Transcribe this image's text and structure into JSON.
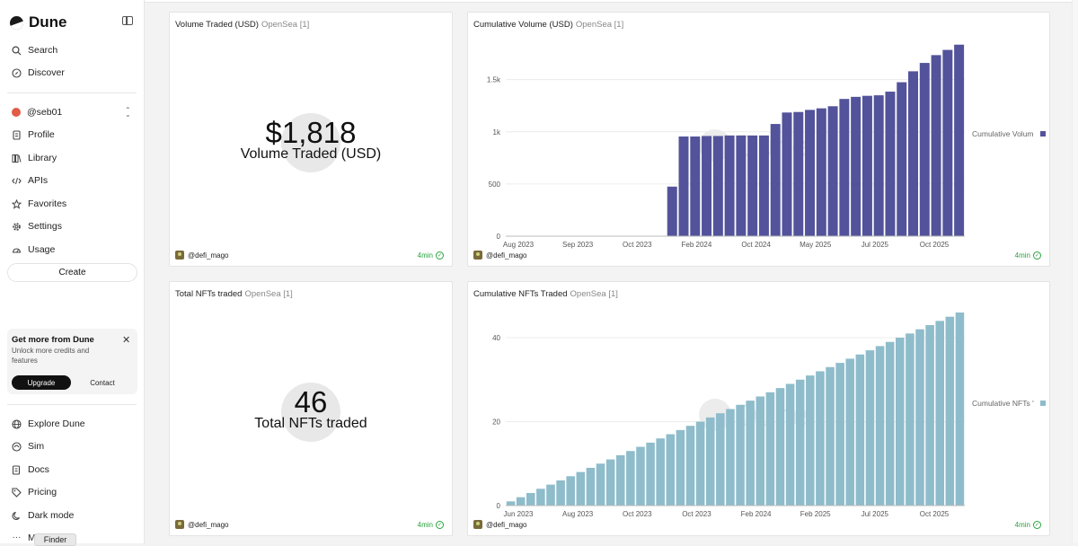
{
  "app": {
    "name": "Dune"
  },
  "sidebar": {
    "search": "Search",
    "discover": "Discover",
    "user": "@seb01",
    "profile": "Profile",
    "library": "Library",
    "apis": "APIs",
    "favorites": "Favorites",
    "settings": "Settings",
    "usage": "Usage",
    "create": "Create",
    "promo": {
      "title": "Get more from Dune",
      "subtitle": "Unlock more credits and features",
      "upgrade": "Upgrade",
      "contact": "Contact"
    },
    "explore": "Explore Dune",
    "sim": "Sim",
    "docs": "Docs",
    "pricing": "Pricing",
    "dark_mode": "Dark mode",
    "more": "Mo",
    "finder": "Finder"
  },
  "cards": {
    "volume": {
      "title": "Volume Traded (USD)",
      "source": "OpenSea [1]",
      "value": "$1,818",
      "label": "Volume Traded (USD)",
      "author": "@defi_mago",
      "freshness": "4min"
    },
    "cum_volume": {
      "title": "Cumulative Volume (USD)",
      "source": "OpenSea [1]",
      "author": "@defi_mago",
      "freshness": "4min"
    },
    "nfts": {
      "title": "Total NFTs traded",
      "source": "OpenSea [1]",
      "value": "46",
      "label": "Total NFTs traded",
      "author": "@defi_mago",
      "freshness": "4min"
    },
    "cum_nfts": {
      "title": "Cumulative NFTs Traded",
      "source": "OpenSea [1]",
      "author": "@defi_mago",
      "freshness": "4min"
    }
  },
  "chart_data": [
    {
      "type": "bar",
      "title": "Cumulative Volume (USD)",
      "legend": "Cumulative Volum",
      "legend_position": "right",
      "color": "#53539b",
      "ylim": [
        0,
        1850
      ],
      "yticks": [
        0,
        500,
        1000,
        1500
      ],
      "ytick_labels": [
        "0",
        "500",
        "1k",
        "1.5k"
      ],
      "x_tick_labels": [
        "Aug 2023",
        "Sep 2023",
        "Oct 2023",
        "Feb 2024",
        "Oct 2024",
        "May 2025",
        "Jul 2025",
        "Oct 2025"
      ],
      "values": [
        0,
        0,
        0,
        0,
        0,
        0,
        0,
        0,
        0,
        0,
        0,
        0,
        0,
        0,
        475,
        955,
        955,
        960,
        960,
        965,
        965,
        965,
        965,
        1075,
        1185,
        1190,
        1210,
        1225,
        1245,
        1315,
        1335,
        1345,
        1350,
        1385,
        1475,
        1580,
        1660,
        1735,
        1785,
        1835
      ]
    },
    {
      "type": "bar",
      "title": "Cumulative NFTs Traded",
      "legend": "Cumulative NFTs '",
      "legend_position": "right",
      "color": "#8ebccb",
      "ylim": [
        0,
        46
      ],
      "yticks": [
        0,
        20,
        40
      ],
      "ytick_labels": [
        "0",
        "20",
        "40"
      ],
      "x_tick_labels": [
        "Jun 2023",
        "Aug 2023",
        "Oct 2023",
        "Oct 2023",
        "Feb 2024",
        "Feb 2025",
        "Jul 2025",
        "Oct 2025"
      ],
      "values": [
        1,
        2,
        3,
        4,
        5,
        6,
        7,
        8,
        9,
        10,
        11,
        12,
        13,
        14,
        15,
        16,
        17,
        18,
        19,
        20,
        21,
        22,
        23,
        24,
        25,
        26,
        27,
        28,
        29,
        30,
        31,
        32,
        33,
        34,
        35,
        36,
        37,
        38,
        39,
        40,
        41,
        42,
        43,
        44,
        45,
        46
      ]
    }
  ]
}
